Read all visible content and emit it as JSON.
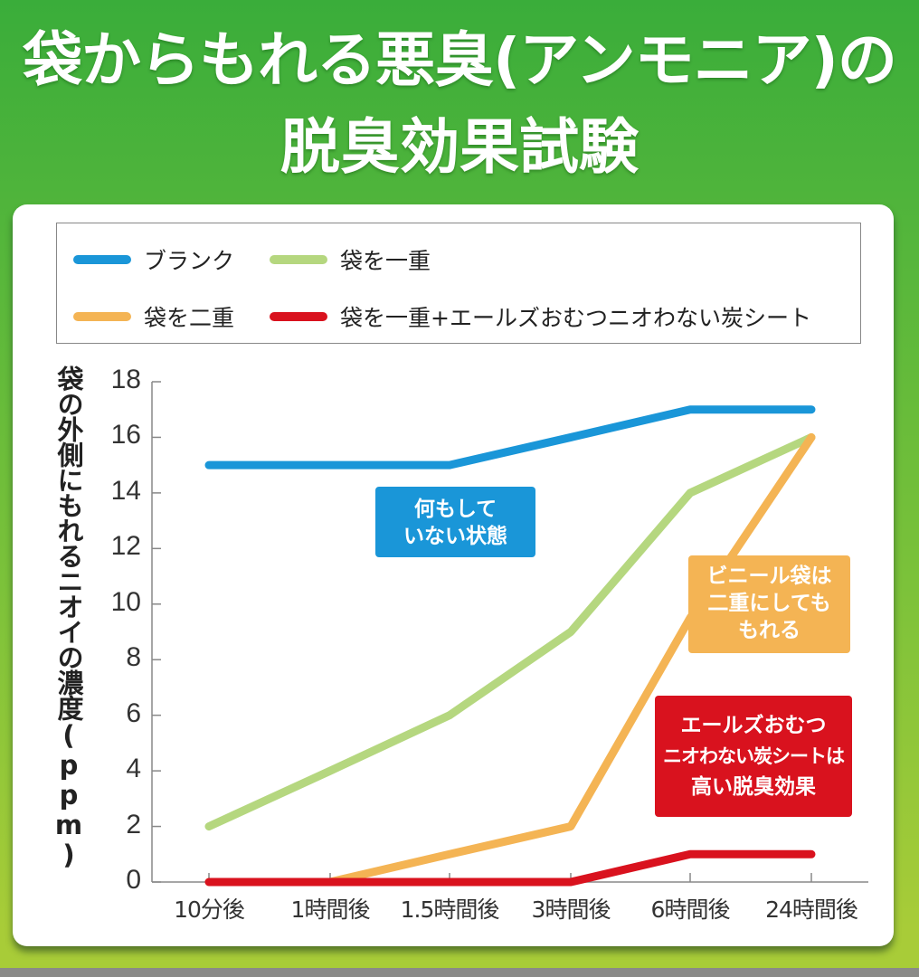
{
  "title": {
    "line1": "袋からもれる悪臭(アンモニア)の",
    "line2": "脱臭効果試験"
  },
  "legend": {
    "items": [
      {
        "label": "ブランク",
        "color": "#1a96d8"
      },
      {
        "label": "袋を一重",
        "color": "#b5d77f"
      },
      {
        "label": "袋を二重",
        "color": "#f4b454"
      },
      {
        "label": "袋を一重+エールズおむつニオわない炭シート",
        "color": "#d9121e"
      }
    ]
  },
  "axis": {
    "ylabel": "袋の外側にもれるニオイの濃度(ppm)",
    "yticks": [
      "18",
      "16",
      "14",
      "12",
      "10",
      "8",
      "6",
      "4",
      "2",
      "0"
    ],
    "xticks": [
      "10分後",
      "1時間後",
      "1.5時間後",
      "3時間後",
      "6時間後",
      "24時間後"
    ]
  },
  "notes": {
    "blank": {
      "line1": "何もして",
      "line2": "いない状態",
      "color": "#1a96d8"
    },
    "double": {
      "line1": "ビニール袋は",
      "line2": "二重にしても",
      "line3": "もれる",
      "color": "#f4b454"
    },
    "sheet": {
      "line1": "エールズおむつ",
      "line2": "ニオわない炭シートは",
      "line3": "高い脱臭効果",
      "color": "#d9121e"
    }
  },
  "chart_data": {
    "type": "line",
    "title": "袋からもれる悪臭(アンモニア)の脱臭効果試験",
    "xlabel": "",
    "ylabel": "袋の外側にもれるニオイの濃度(ppm)",
    "categories": [
      "10分後",
      "1時間後",
      "1.5時間後",
      "3時間後",
      "6時間後",
      "24時間後"
    ],
    "ylim": [
      0,
      18
    ],
    "yticks": [
      0,
      2,
      4,
      6,
      8,
      10,
      12,
      14,
      16,
      18
    ],
    "grid": false,
    "legend_position": "top",
    "series": [
      {
        "name": "ブランク",
        "color": "#1a96d8",
        "values": [
          15,
          15,
          15,
          16,
          17,
          17
        ]
      },
      {
        "name": "袋を一重",
        "color": "#b5d77f",
        "values": [
          2,
          4,
          6,
          9,
          14,
          16
        ]
      },
      {
        "name": "袋を二重",
        "color": "#f4b454",
        "values": [
          0,
          0,
          1,
          2,
          9.5,
          16
        ]
      },
      {
        "name": "袋を一重+エールズおむつニオわない炭シート",
        "color": "#d9121e",
        "values": [
          0,
          0,
          0,
          0,
          1,
          1
        ]
      }
    ],
    "annotations": [
      "何もしていない状態",
      "ビニール袋は二重にしてももれる",
      "エールズおむつニオわない炭シートは高い脱臭効果"
    ]
  }
}
